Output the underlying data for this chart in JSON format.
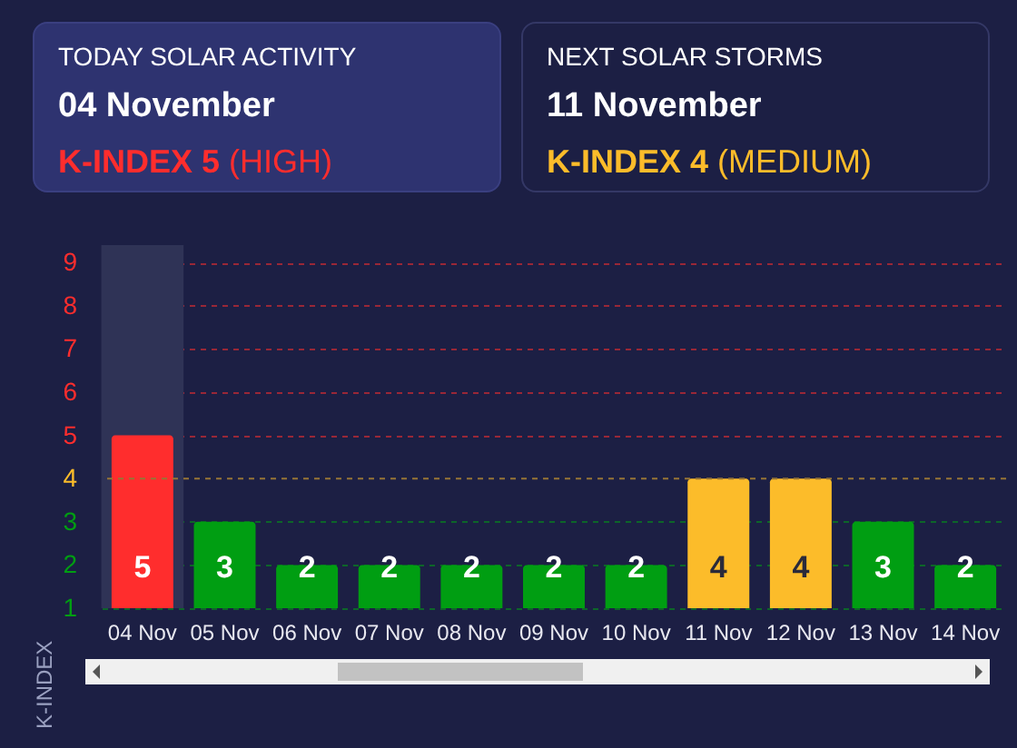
{
  "chart_data": {
    "type": "bar",
    "ylabel": "K-INDEX",
    "categories": [
      "04 Nov",
      "05 Nov",
      "06 Nov",
      "07 Nov",
      "08 Nov",
      "09 Nov",
      "10 Nov",
      "11 Nov",
      "12 Nov",
      "13 Nov",
      "14 Nov"
    ],
    "values": [
      5,
      3,
      2,
      2,
      2,
      2,
      2,
      4,
      4,
      3,
      2
    ],
    "colors": [
      "#ff2d2d",
      "#009e12",
      "#009e12",
      "#009e12",
      "#009e12",
      "#009e12",
      "#009e12",
      "#fcbc2a",
      "#fcbc2a",
      "#009e12",
      "#009e12"
    ],
    "ylim": [
      1,
      9.4
    ],
    "yticks": [
      1,
      2,
      3,
      4,
      5,
      6,
      7,
      8,
      9
    ],
    "grid": true,
    "data_labels": true,
    "ref_lines": [
      {
        "axis": "y",
        "value": 4,
        "color": "#977536",
        "line_style": "dashed"
      }
    ],
    "bands": [
      {
        "axis": "x",
        "from": "04 Nov",
        "to": "04 Nov",
        "color": "#2f3356"
      }
    ],
    "annotations": [
      "TODAY SOLAR ACTIVITY",
      "04 November",
      "K-INDEX 5",
      "(HIGH)",
      "NEXT SOLAR STORMS",
      "11 November",
      "K-INDEX 4",
      "(MEDIUM)"
    ]
  }
}
